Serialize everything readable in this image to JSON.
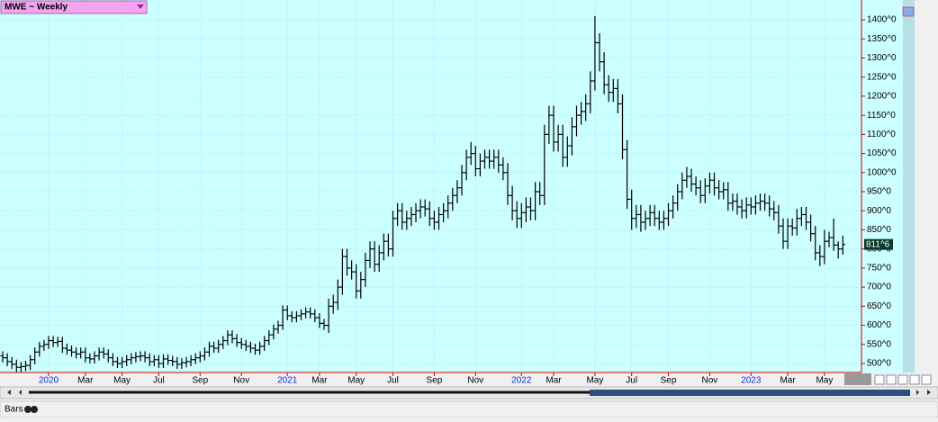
{
  "chart_data": {
    "type": "ohlc",
    "title": "MWE ~ Weekly",
    "footer": "Bars",
    "color": "#000000",
    "background": "#ccffff",
    "grid": true,
    "last": {
      "value": 811.75,
      "label": "811^6"
    },
    "ylim": [
      476.4,
      1451.9
    ],
    "yticks": [
      {
        "value": 500,
        "label": "500^0"
      },
      {
        "value": 550,
        "label": "550^0"
      },
      {
        "value": 600,
        "label": "600^0"
      },
      {
        "value": 650,
        "label": "650^0"
      },
      {
        "value": 700,
        "label": "700^0"
      },
      {
        "value": 750,
        "label": "750^0"
      },
      {
        "value": 800,
        "label": "800^0"
      },
      {
        "value": 850,
        "label": "850^0"
      },
      {
        "value": 900,
        "label": "900^0"
      },
      {
        "value": 950,
        "label": "950^0"
      },
      {
        "value": 1000,
        "label": "1000^0"
      },
      {
        "value": 1050,
        "label": "1050^0"
      },
      {
        "value": 1100,
        "label": "1100^0"
      },
      {
        "value": 1150,
        "label": "1150^0"
      },
      {
        "value": 1200,
        "label": "1200^0"
      },
      {
        "value": 1250,
        "label": "1250^0"
      },
      {
        "value": 1300,
        "label": "1300^0"
      },
      {
        "value": 1350,
        "label": "1350^0"
      },
      {
        "value": 1400,
        "label": "1400^0"
      }
    ],
    "categories": [
      null,
      null,
      null,
      null,
      null,
      null,
      null,
      null,
      null,
      null,
      "2020",
      null,
      null,
      null,
      null,
      null,
      null,
      null,
      "Mar",
      null,
      null,
      null,
      null,
      null,
      null,
      null,
      "May",
      null,
      null,
      null,
      null,
      null,
      null,
      null,
      "Jul",
      null,
      null,
      null,
      null,
      null,
      null,
      null,
      null,
      "Sep",
      null,
      null,
      null,
      null,
      null,
      null,
      null,
      null,
      "Nov",
      null,
      null,
      null,
      null,
      null,
      null,
      null,
      null,
      null,
      "2021",
      null,
      null,
      null,
      null,
      null,
      null,
      "Mar",
      null,
      null,
      null,
      null,
      null,
      null,
      null,
      "May",
      null,
      null,
      null,
      null,
      null,
      null,
      null,
      "Jul",
      null,
      null,
      null,
      null,
      null,
      null,
      null,
      null,
      "Sep",
      null,
      null,
      null,
      null,
      null,
      null,
      null,
      null,
      "Nov",
      null,
      null,
      null,
      null,
      null,
      null,
      null,
      null,
      null,
      "2022",
      null,
      null,
      null,
      null,
      null,
      null,
      "Mar",
      null,
      null,
      null,
      null,
      null,
      null,
      null,
      null,
      "May",
      null,
      null,
      null,
      null,
      null,
      null,
      null,
      "Jul",
      null,
      null,
      null,
      null,
      null,
      null,
      null,
      "Sep",
      null,
      null,
      null,
      null,
      null,
      null,
      null,
      null,
      "Nov",
      null,
      null,
      null,
      null,
      null,
      null,
      null,
      null,
      "2023",
      null,
      null,
      null,
      null,
      null,
      null,
      null,
      "Mar",
      null,
      null,
      null,
      null,
      null,
      null,
      null,
      "May",
      null,
      null,
      null,
      null
    ],
    "open": [
      520,
      515,
      505,
      498,
      490,
      492,
      495,
      510,
      530,
      545,
      550,
      560,
      555,
      558,
      540,
      535,
      530,
      525,
      530,
      515,
      512,
      520,
      530,
      525,
      515,
      505,
      500,
      505,
      510,
      515,
      518,
      520,
      515,
      505,
      510,
      500,
      512,
      508,
      505,
      498,
      502,
      505,
      510,
      515,
      520,
      530,
      545,
      540,
      550,
      560,
      575,
      565,
      555,
      550,
      545,
      540,
      535,
      545,
      560,
      575,
      590,
      600,
      640,
      625,
      620,
      625,
      630,
      635,
      630,
      620,
      605,
      600,
      650,
      660,
      700,
      780,
      750,
      740,
      690,
      720,
      770,
      800,
      760,
      790,
      820,
      800,
      880,
      900,
      870,
      880,
      890,
      900,
      910,
      905,
      880,
      870,
      890,
      900,
      920,
      940,
      960,
      1000,
      1040,
      1050,
      1010,
      1030,
      1040,
      1030,
      1040,
      1020,
      1000,
      940,
      900,
      880,
      895,
      910,
      900,
      950,
      940,
      1100,
      1150,
      1080,
      1100,
      1040,
      1070,
      1120,
      1150,
      1160,
      1180,
      1240,
      1340,
      1290,
      1230,
      1210,
      1220,
      1180,
      1060,
      930,
      880,
      890,
      870,
      880,
      895,
      880,
      870,
      880,
      900,
      920,
      950,
      980,
      990,
      970,
      960,
      940,
      965,
      980,
      960,
      950,
      955,
      920,
      925,
      910,
      900,
      915,
      910,
      920,
      925,
      920,
      905,
      895,
      860,
      820,
      860,
      855,
      880,
      890,
      870,
      840,
      790,
      780,
      820,
      830,
      810,
      800
    ],
    "high": [
      532,
      527,
      517,
      510,
      504,
      507,
      522,
      542,
      557,
      562,
      572,
      572,
      570,
      570,
      552,
      547,
      542,
      542,
      542,
      527,
      532,
      542,
      542,
      537,
      527,
      517,
      517,
      522,
      527,
      530,
      532,
      532,
      527,
      522,
      522,
      524,
      524,
      520,
      517,
      514,
      517,
      522,
      527,
      532,
      542,
      557,
      557,
      562,
      572,
      587,
      587,
      577,
      567,
      562,
      557,
      552,
      557,
      572,
      587,
      602,
      612,
      652,
      652,
      637,
      637,
      642,
      647,
      647,
      642,
      632,
      617,
      670,
      680,
      720,
      800,
      800,
      770,
      760,
      740,
      790,
      820,
      820,
      810,
      840,
      840,
      900,
      920,
      920,
      900,
      910,
      920,
      930,
      930,
      925,
      900,
      910,
      920,
      940,
      960,
      980,
      1020,
      1060,
      1080,
      1070,
      1050,
      1060,
      1060,
      1060,
      1060,
      1040,
      1025,
      965,
      925,
      920,
      935,
      935,
      975,
      975,
      1125,
      1175,
      1175,
      1125,
      1125,
      1095,
      1145,
      1175,
      1185,
      1205,
      1265,
      1410,
      1365,
      1315,
      1255,
      1245,
      1245,
      1205,
      1085,
      955,
      915,
      915,
      900,
      915,
      915,
      900,
      900,
      920,
      940,
      970,
      1000,
      1015,
      1010,
      990,
      980,
      985,
      1000,
      1000,
      980,
      975,
      975,
      945,
      945,
      930,
      935,
      935,
      940,
      945,
      945,
      940,
      925,
      915,
      880,
      880,
      880,
      905,
      910,
      910,
      890,
      860,
      810,
      850,
      845,
      880,
      820,
      835
    ],
    "low": [
      503,
      493,
      486,
      478,
      478,
      480,
      483,
      498,
      518,
      533,
      538,
      543,
      543,
      528,
      523,
      518,
      513,
      513,
      503,
      500,
      500,
      508,
      513,
      503,
      493,
      488,
      488,
      493,
      498,
      503,
      506,
      503,
      493,
      493,
      488,
      488,
      496,
      493,
      486,
      486,
      490,
      493,
      498,
      503,
      508,
      518,
      528,
      528,
      538,
      548,
      553,
      543,
      538,
      533,
      528,
      523,
      523,
      533,
      548,
      563,
      578,
      588,
      613,
      608,
      608,
      613,
      618,
      618,
      608,
      593,
      588,
      580,
      630,
      640,
      680,
      730,
      720,
      670,
      670,
      700,
      750,
      740,
      740,
      770,
      780,
      780,
      860,
      850,
      850,
      860,
      870,
      880,
      885,
      860,
      850,
      850,
      870,
      880,
      900,
      920,
      940,
      980,
      1020,
      990,
      990,
      1010,
      1010,
      1010,
      1000,
      980,
      915,
      875,
      855,
      855,
      870,
      875,
      875,
      915,
      915,
      1075,
      1055,
      1055,
      1015,
      1015,
      1045,
      1095,
      1125,
      1135,
      1155,
      1215,
      1265,
      1205,
      1185,
      1185,
      1155,
      1035,
      905,
      850,
      855,
      845,
      850,
      860,
      860,
      850,
      850,
      860,
      880,
      900,
      930,
      960,
      950,
      940,
      920,
      920,
      945,
      940,
      930,
      930,
      900,
      900,
      890,
      880,
      880,
      890,
      890,
      900,
      900,
      885,
      875,
      840,
      800,
      800,
      835,
      835,
      860,
      850,
      820,
      770,
      755,
      760,
      805,
      795,
      775,
      785
    ],
    "close": [
      515,
      505,
      498,
      490,
      492,
      495,
      510,
      530,
      545,
      550,
      560,
      555,
      558,
      540,
      535,
      530,
      525,
      530,
      515,
      512,
      520,
      530,
      525,
      515,
      505,
      500,
      505,
      510,
      515,
      518,
      520,
      515,
      505,
      510,
      500,
      512,
      508,
      505,
      498,
      502,
      505,
      510,
      515,
      520,
      530,
      545,
      540,
      550,
      560,
      575,
      565,
      555,
      550,
      545,
      540,
      535,
      545,
      560,
      575,
      590,
      600,
      640,
      625,
      620,
      625,
      630,
      635,
      630,
      620,
      605,
      600,
      650,
      660,
      700,
      780,
      750,
      740,
      690,
      720,
      770,
      800,
      760,
      790,
      820,
      800,
      880,
      900,
      870,
      880,
      890,
      900,
      910,
      905,
      880,
      870,
      890,
      900,
      920,
      940,
      960,
      1000,
      1040,
      1050,
      1010,
      1030,
      1040,
      1030,
      1040,
      1020,
      1000,
      940,
      900,
      880,
      895,
      910,
      900,
      950,
      940,
      1100,
      1150,
      1080,
      1100,
      1040,
      1070,
      1120,
      1150,
      1160,
      1180,
      1240,
      1340,
      1290,
      1230,
      1210,
      1220,
      1180,
      1060,
      930,
      880,
      890,
      870,
      880,
      895,
      880,
      870,
      880,
      900,
      920,
      950,
      980,
      990,
      970,
      960,
      940,
      965,
      980,
      960,
      950,
      955,
      920,
      925,
      910,
      900,
      915,
      910,
      920,
      925,
      920,
      905,
      895,
      860,
      820,
      860,
      855,
      880,
      890,
      870,
      840,
      790,
      780,
      820,
      830,
      810,
      800,
      811.75
    ]
  }
}
